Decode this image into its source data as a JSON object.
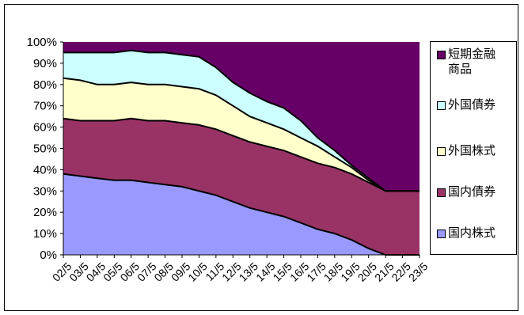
{
  "chart_data": {
    "type": "area",
    "stacked": true,
    "x": [
      "02/5",
      "03/5",
      "04/5",
      "05/5",
      "06/5",
      "07/5",
      "08/5",
      "09/5",
      "10/5",
      "11/5",
      "12/5",
      "13/5",
      "14/5",
      "15/5",
      "16/5",
      "17/5",
      "18/5",
      "19/5",
      "20/5",
      "21/5",
      "22/5",
      "23/5"
    ],
    "y_tick_labels": [
      "0%",
      "10%",
      "20%",
      "30%",
      "40%",
      "50%",
      "60%",
      "70%",
      "80%",
      "90%",
      "100%"
    ],
    "ylim": [
      0,
      100
    ],
    "legend_position": "right",
    "series": [
      {
        "name": "国内株式",
        "color": "#9999ff",
        "values": [
          38,
          37,
          36,
          35,
          35,
          34,
          33,
          32,
          30,
          28,
          25,
          22,
          20,
          18,
          15,
          12,
          10,
          7,
          3,
          0,
          0,
          0
        ]
      },
      {
        "name": "国内債券",
        "color": "#993366",
        "values": [
          26,
          26,
          27,
          28,
          29,
          29,
          30,
          30,
          31,
          31,
          31,
          31,
          31,
          31,
          31,
          31,
          31,
          31,
          31,
          30,
          30,
          30
        ]
      },
      {
        "name": "外国株式",
        "color": "#ffffcc",
        "values": [
          19,
          19,
          17,
          17,
          17,
          17,
          17,
          17,
          17,
          16,
          14,
          12,
          11,
          10,
          9,
          8,
          5,
          3,
          1,
          0,
          0,
          0
        ]
      },
      {
        "name": "外国債券",
        "color": "#ccffff",
        "values": [
          12,
          13,
          15,
          15,
          15,
          15,
          15,
          15,
          15,
          13,
          11,
          11,
          10,
          10,
          8,
          4,
          3,
          1,
          1,
          0,
          0,
          0
        ]
      },
      {
        "name": "短期金融\n商品",
        "color": "#660066",
        "values": [
          5,
          5,
          5,
          5,
          4,
          5,
          5,
          6,
          7,
          12,
          19,
          24,
          28,
          31,
          37,
          45,
          51,
          58,
          64,
          70,
          70,
          70
        ]
      }
    ]
  }
}
